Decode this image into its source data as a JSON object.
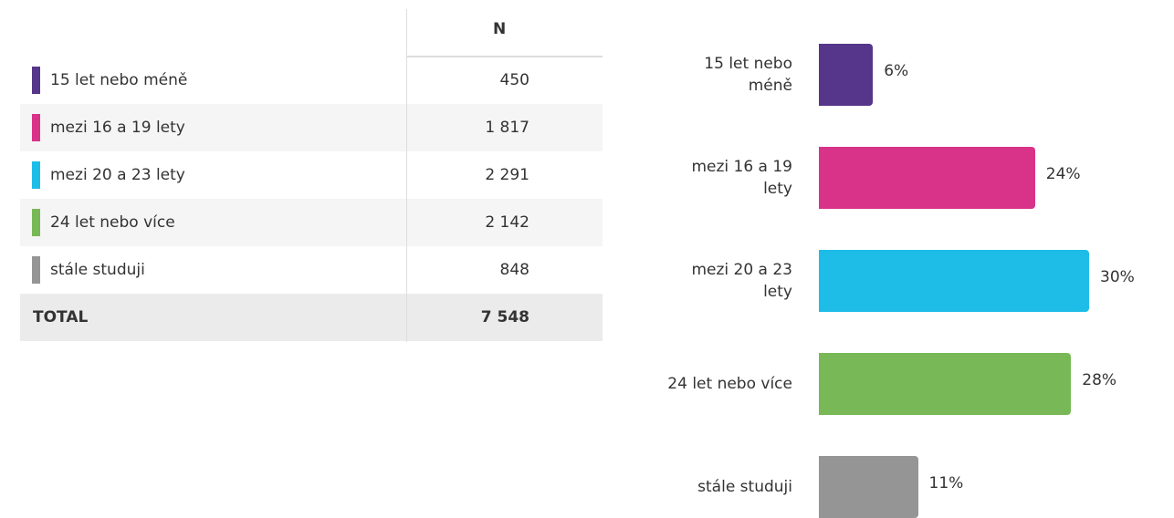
{
  "table": {
    "header": "N",
    "rows": [
      {
        "label": "15 let nebo méně",
        "value": "450",
        "color": "#55368a"
      },
      {
        "label": "mezi 16 a 19 lety",
        "value": "1 817",
        "color": "#d93289"
      },
      {
        "label": "mezi 20 a 23 lety",
        "value": "2 291",
        "color": "#1dbde8"
      },
      {
        "label": "24 let nebo více",
        "value": "2 142",
        "color": "#78b856"
      },
      {
        "label": "stále studuji",
        "value": "848",
        "color": "#959595"
      }
    ],
    "total": {
      "label": "TOTAL",
      "value": "7 548"
    }
  },
  "chart_data": {
    "type": "bar",
    "orientation": "horizontal",
    "categories": [
      "15 let nebo méně",
      "mezi 16 a 19 lety",
      "mezi 20 a 23 lety",
      "24 let nebo více",
      "stále studuji"
    ],
    "values": [
      6,
      24,
      30,
      28,
      11
    ],
    "value_labels": [
      "6%",
      "24%",
      "30%",
      "28%",
      "11%"
    ],
    "colors": [
      "#55368a",
      "#d93289",
      "#1dbde8",
      "#78b856",
      "#959595"
    ]
  }
}
